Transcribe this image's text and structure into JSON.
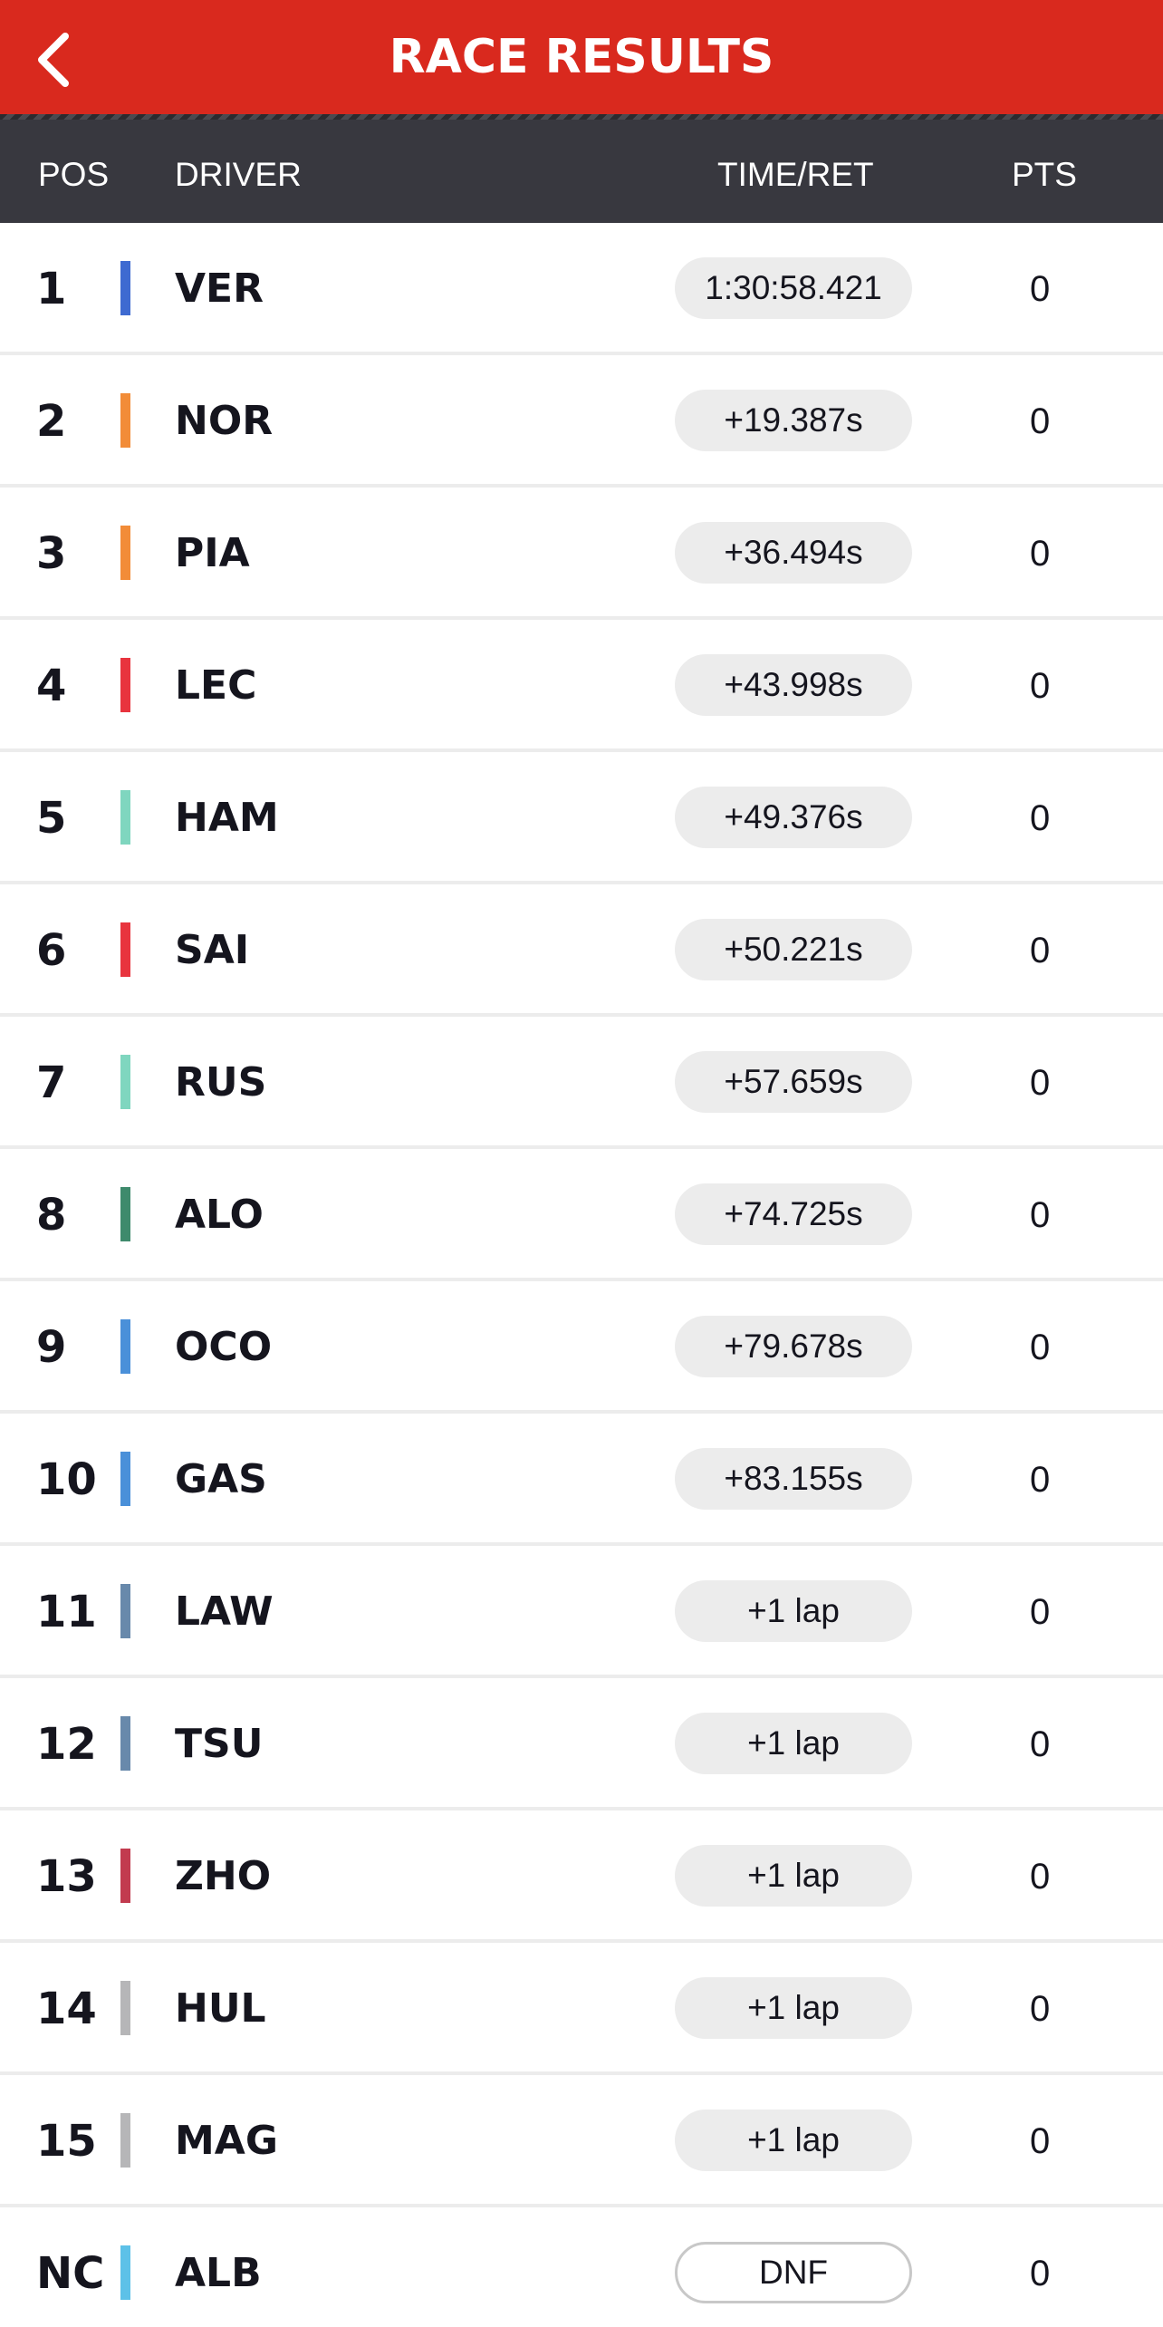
{
  "header": {
    "title": "RACE RESULTS",
    "back_icon": "chevron-left-icon"
  },
  "columns": {
    "pos": "POS",
    "driver": "DRIVER",
    "time": "TIME/RET",
    "pts": "PTS"
  },
  "colors": {
    "header_bg": "#d9291e",
    "column_bar_bg": "#38383f",
    "pill_bg": "#ececec"
  },
  "results": [
    {
      "pos": "1",
      "driver": "VER",
      "time": "1:30:58.421",
      "pts": "0",
      "team_color": "#3e6ad1",
      "status": "finished"
    },
    {
      "pos": "2",
      "driver": "NOR",
      "time": "+19.387s",
      "pts": "0",
      "team_color": "#f28c38",
      "status": "finished"
    },
    {
      "pos": "3",
      "driver": "PIA",
      "time": "+36.494s",
      "pts": "0",
      "team_color": "#f28c38",
      "status": "finished"
    },
    {
      "pos": "4",
      "driver": "LEC",
      "time": "+43.998s",
      "pts": "0",
      "team_color": "#e8343e",
      "status": "finished"
    },
    {
      "pos": "5",
      "driver": "HAM",
      "time": "+49.376s",
      "pts": "0",
      "team_color": "#7fd6bf",
      "status": "finished"
    },
    {
      "pos": "6",
      "driver": "SAI",
      "time": "+50.221s",
      "pts": "0",
      "team_color": "#e8343e",
      "status": "finished"
    },
    {
      "pos": "7",
      "driver": "RUS",
      "time": "+57.659s",
      "pts": "0",
      "team_color": "#7fd6bf",
      "status": "finished"
    },
    {
      "pos": "8",
      "driver": "ALO",
      "time": "+74.725s",
      "pts": "0",
      "team_color": "#3e8a6c",
      "status": "finished"
    },
    {
      "pos": "9",
      "driver": "OCO",
      "time": "+79.678s",
      "pts": "0",
      "team_color": "#4a90d9",
      "status": "finished"
    },
    {
      "pos": "10",
      "driver": "GAS",
      "time": "+83.155s",
      "pts": "0",
      "team_color": "#4a90d9",
      "status": "finished"
    },
    {
      "pos": "11",
      "driver": "LAW",
      "time": "+1 lap",
      "pts": "0",
      "team_color": "#6889ab",
      "status": "finished"
    },
    {
      "pos": "12",
      "driver": "TSU",
      "time": "+1 lap",
      "pts": "0",
      "team_color": "#6889ab",
      "status": "finished"
    },
    {
      "pos": "13",
      "driver": "ZHO",
      "time": "+1 lap",
      "pts": "0",
      "team_color": "#c23b4f",
      "status": "finished"
    },
    {
      "pos": "14",
      "driver": "HUL",
      "time": "+1 lap",
      "pts": "0",
      "team_color": "#b6b6b8",
      "status": "finished"
    },
    {
      "pos": "15",
      "driver": "MAG",
      "time": "+1 lap",
      "pts": "0",
      "team_color": "#b6b6b8",
      "status": "finished"
    },
    {
      "pos": "NC",
      "driver": "ALB",
      "time": "DNF",
      "pts": "0",
      "team_color": "#5dc1e8",
      "status": "dnf"
    }
  ]
}
